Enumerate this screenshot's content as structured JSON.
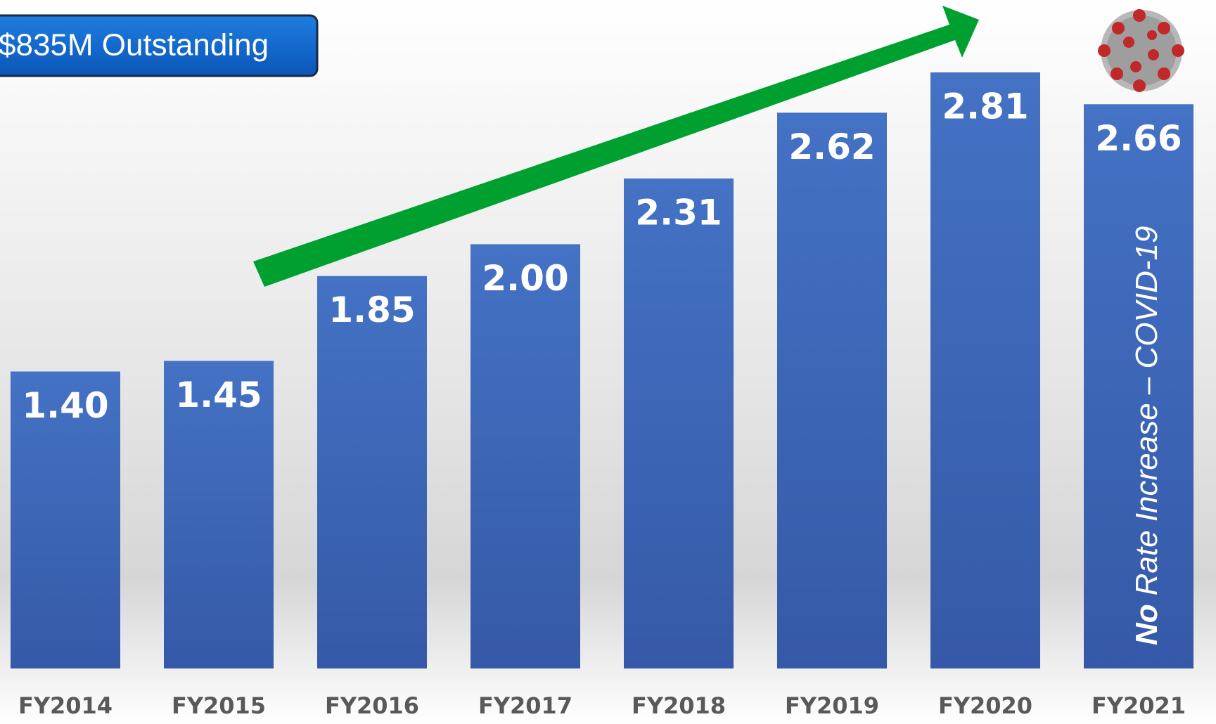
{
  "chart_data": {
    "type": "bar",
    "categories": [
      "FY2014",
      "FY2015",
      "FY2016",
      "FY2017",
      "FY2018",
      "FY2019",
      "FY2020",
      "FY2021"
    ],
    "values": [
      1.4,
      1.45,
      1.85,
      2.0,
      2.31,
      2.62,
      2.81,
      2.66
    ],
    "value_labels": [
      "1.40",
      "1.45",
      "1.85",
      "2.00",
      "2.31",
      "2.62",
      "2.81",
      "2.66"
    ],
    "color": "#3a63b5",
    "badge": "$835M Outstanding",
    "annotation": [
      "No",
      "Rate Increase – COVID-19"
    ]
  }
}
